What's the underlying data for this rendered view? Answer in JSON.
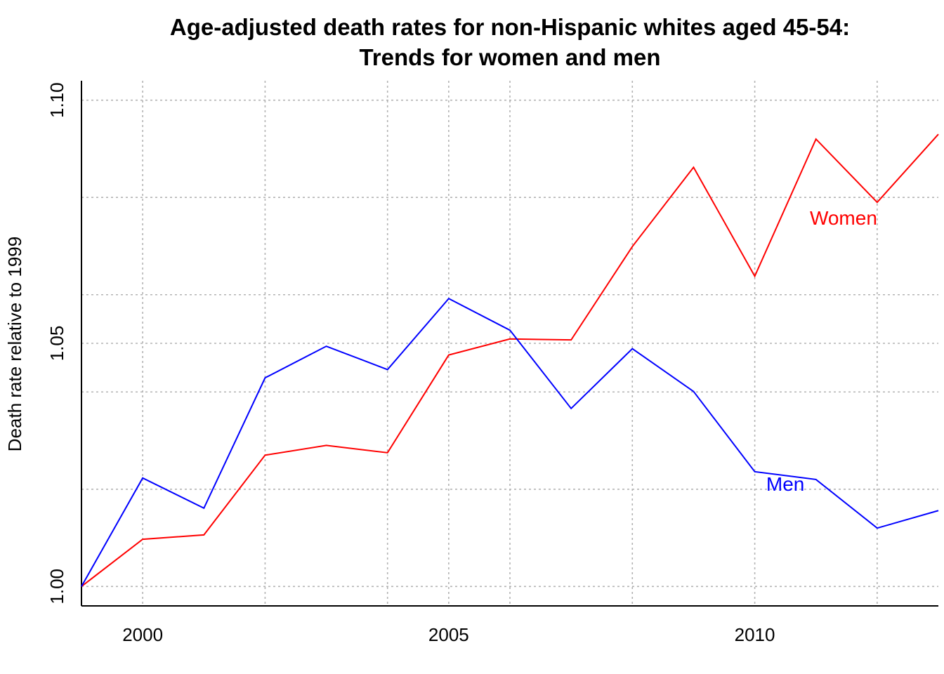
{
  "chart_data": {
    "type": "line",
    "title": "Age-adjusted death rates for non-Hispanic whites aged 45-54:",
    "subtitle": "Trends for women and men",
    "xlabel": "",
    "ylabel": "Death rate relative to 1999",
    "x": [
      1999,
      2000,
      2001,
      2002,
      2003,
      2004,
      2005,
      2006,
      2007,
      2008,
      2009,
      2010,
      2011,
      2012,
      2013
    ],
    "xlim": [
      1999,
      2013
    ],
    "ylim": [
      0.996,
      1.104
    ],
    "x_ticks": [
      2000,
      2005,
      2010
    ],
    "x_tick_labels": [
      "2000",
      "2005",
      "2010"
    ],
    "y_ticks": [
      1.0,
      1.05,
      1.1
    ],
    "y_tick_labels": [
      "1.00",
      "1.05",
      "1.10"
    ],
    "x_grid": [
      2000,
      2002,
      2004,
      2005,
      2006,
      2008,
      2010,
      2012
    ],
    "y_grid": [
      1.0,
      1.02,
      1.04,
      1.05,
      1.06,
      1.08,
      1.1
    ],
    "grid": true,
    "series": [
      {
        "name": "Women",
        "color": "#ff0000",
        "values": [
          1.0,
          1.0097,
          1.0106,
          1.027,
          1.029,
          1.0275,
          1.0476,
          1.0509,
          1.0507,
          1.0699,
          1.0862,
          1.0638,
          1.092,
          1.079,
          1.093
        ],
        "label_position": [
          2011.45,
          1.0744
        ]
      },
      {
        "name": "Men",
        "color": "#0000ff",
        "values": [
          1.0,
          1.0223,
          1.0161,
          1.0429,
          1.0494,
          1.0446,
          1.0592,
          1.0527,
          1.0366,
          1.0489,
          1.0401,
          1.0236,
          1.022,
          1.012,
          1.0156
        ],
        "label_position": [
          2010.5,
          1.0197
        ]
      }
    ]
  }
}
